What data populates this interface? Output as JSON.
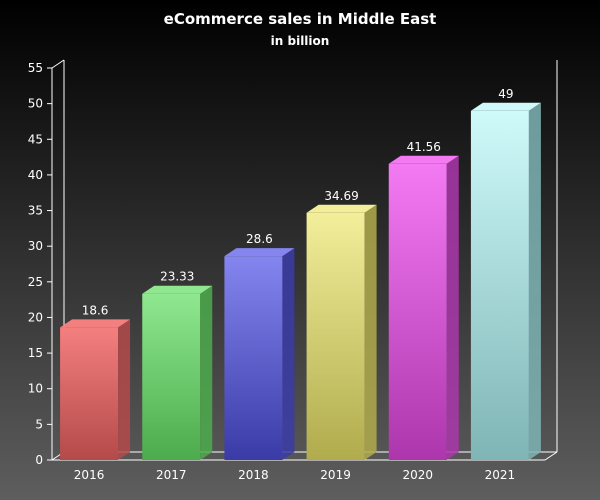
{
  "chart_data": {
    "type": "bar",
    "title": "eCommerce sales in Middle East",
    "subtitle": "in billion",
    "xlabel": "",
    "ylabel": "",
    "categories": [
      "2016",
      "2017",
      "2018",
      "2019",
      "2020",
      "2021"
    ],
    "values": [
      18.6,
      23.33,
      28.6,
      34.69,
      41.56,
      49
    ],
    "value_labels": [
      "18.6",
      "23.33",
      "28.6",
      "34.69",
      "41.56",
      "49"
    ],
    "ylim": [
      0,
      55
    ],
    "yticks": [
      "0",
      "5",
      "10",
      "15",
      "20",
      "25",
      "30",
      "35",
      "40",
      "45",
      "50",
      "55"
    ],
    "grid": false,
    "legend": "none",
    "style": "3d",
    "bar_colors": [
      "#f47f7f",
      "#8fe88f",
      "#8585ef",
      "#f2ee9a",
      "#f37af3",
      "#cffafa"
    ],
    "bar_dark_colors": [
      "#b44a4a",
      "#4cab4c",
      "#3b3ba8",
      "#b0ac4d",
      "#ad36ad",
      "#7fb5b5"
    ],
    "background": {
      "top": "#000000",
      "bottom": "#5e5e5e"
    },
    "axis_color": "#ffffff",
    "text_color": "#ffffff"
  }
}
